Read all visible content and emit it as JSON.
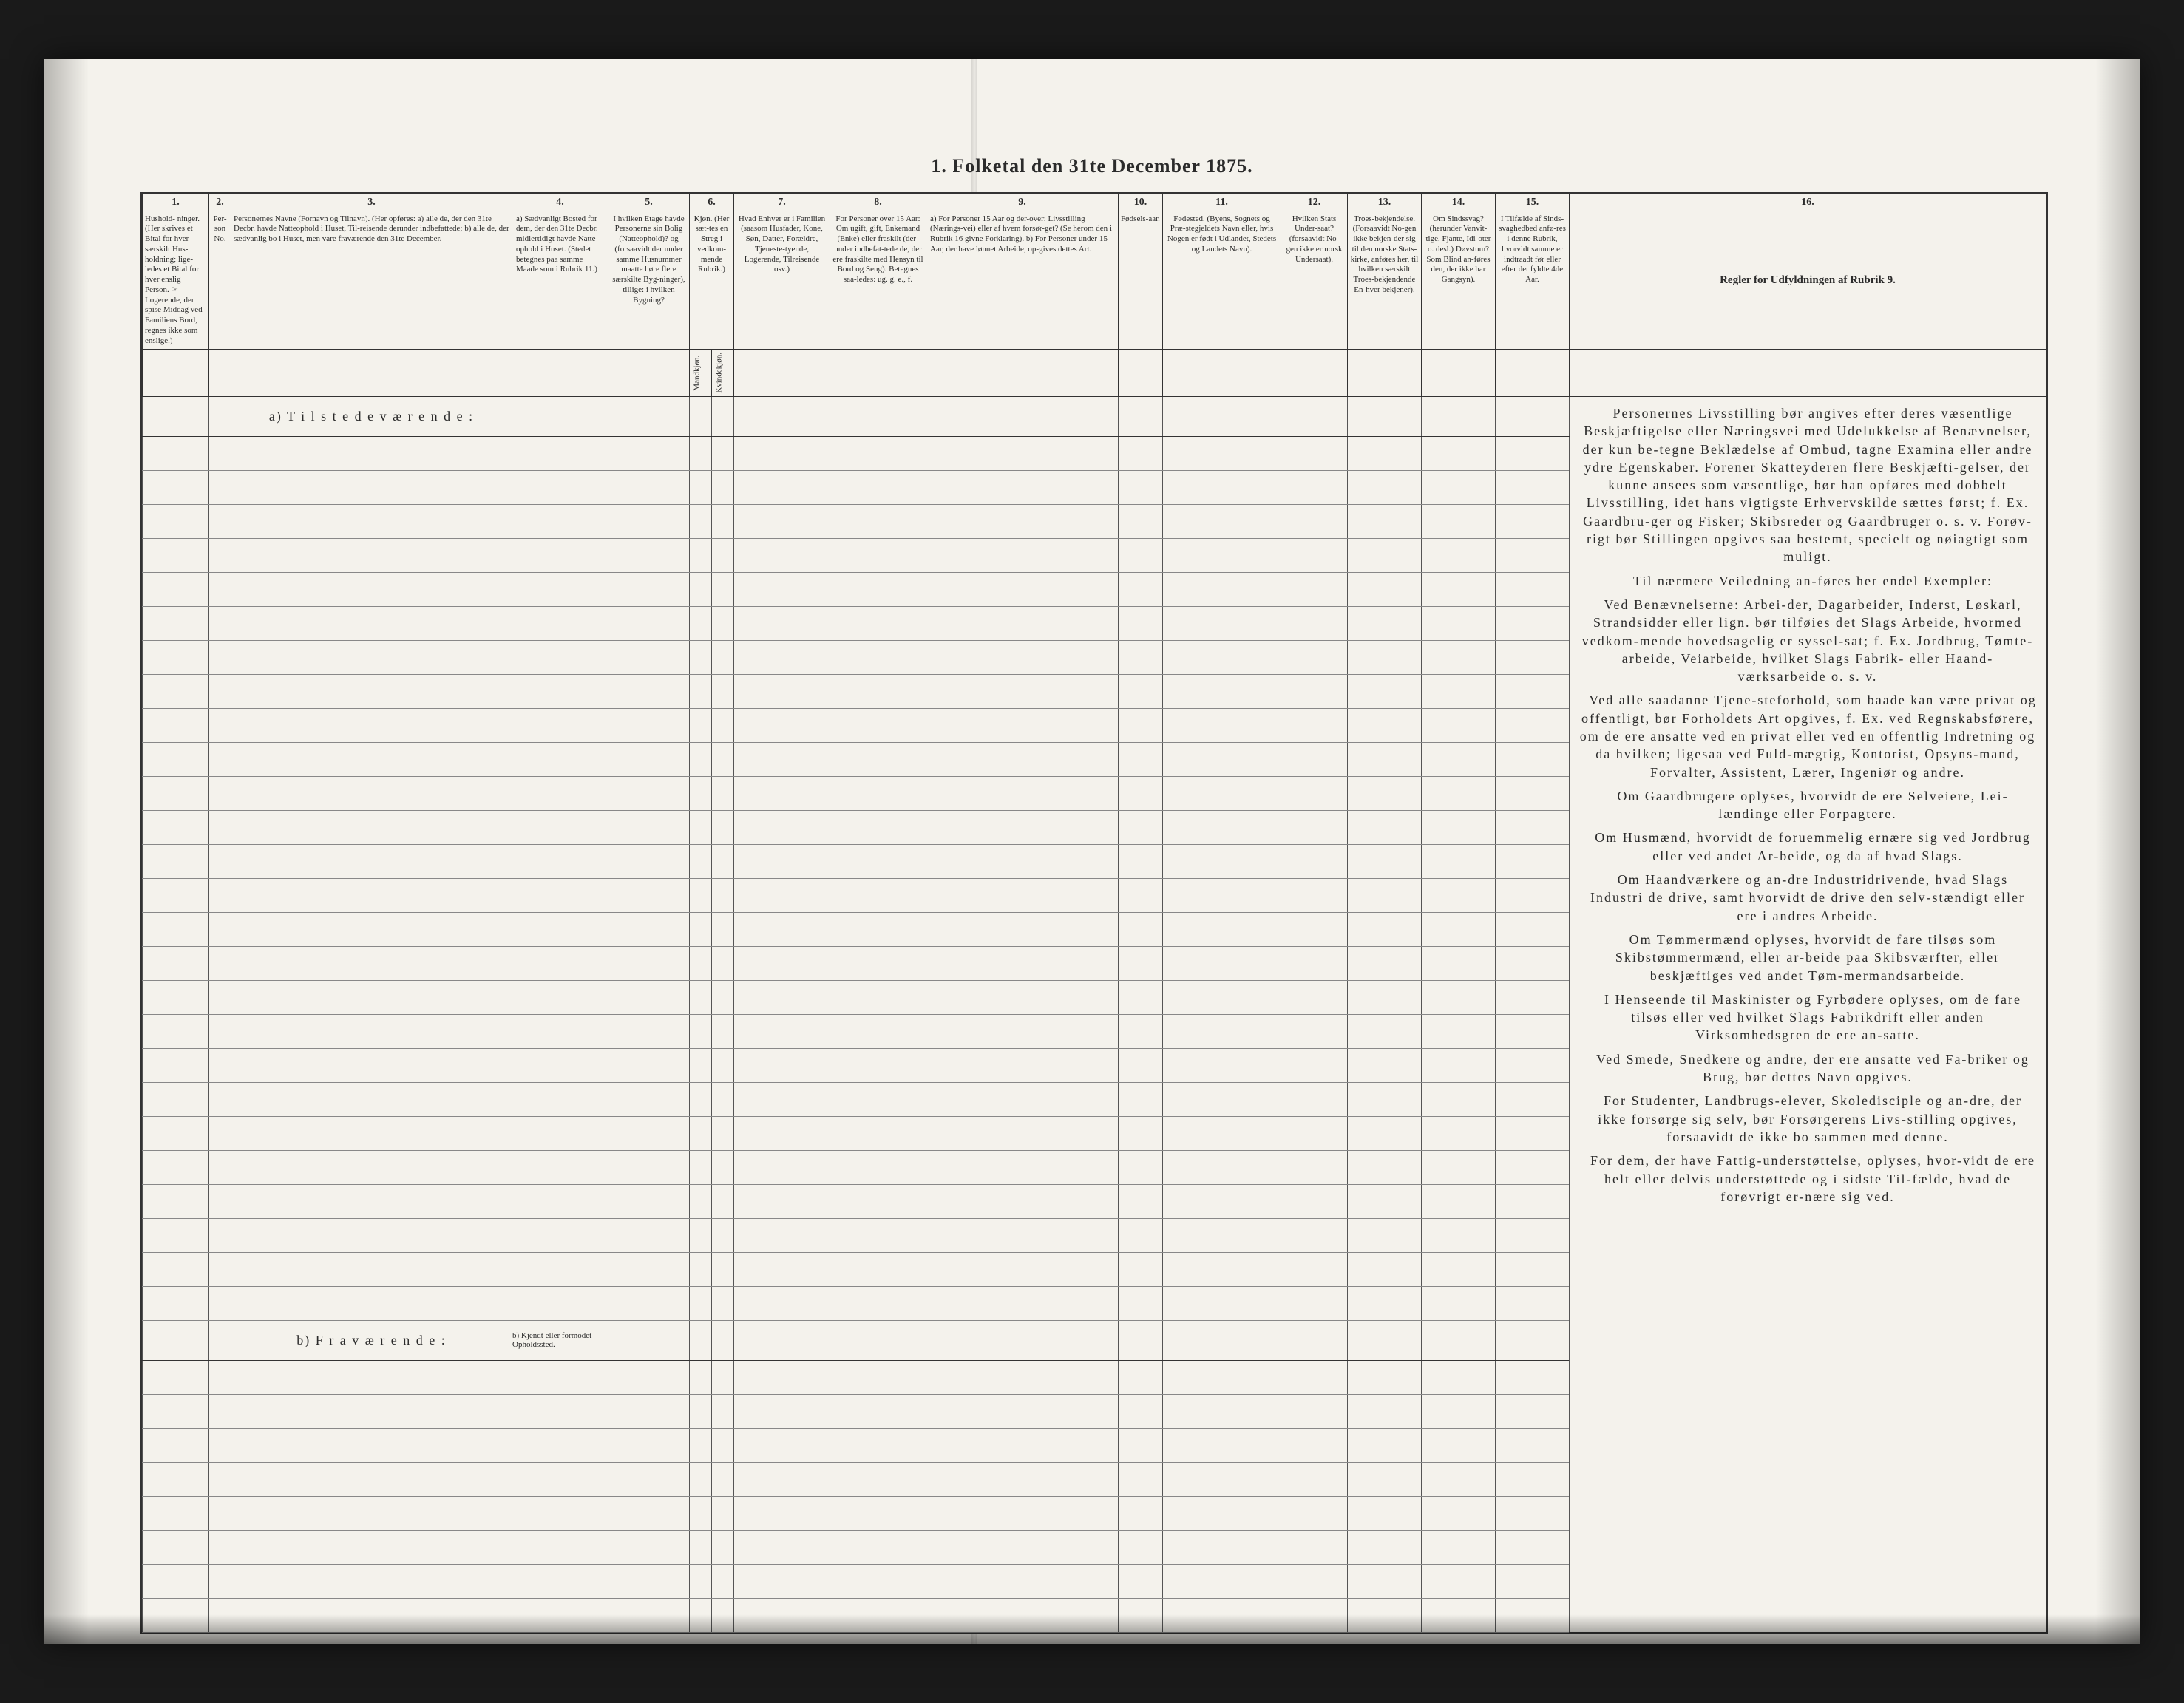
{
  "title": "1.  Folketal  den 31te December 1875.",
  "section_a": "a)  T i l s t e d e v æ r e n d e :",
  "section_b": "b)  F r a v æ r e n d e :",
  "rows_a": 26,
  "rows_b": 8,
  "cols": {
    "n1": "1.",
    "n2": "2.",
    "n3": "3.",
    "n4": "4.",
    "n5": "5.",
    "n6": "6.",
    "n7": "7.",
    "n8": "8.",
    "n9": "9.",
    "n10": "10.",
    "n11": "11.",
    "n12": "12.",
    "n13": "13.",
    "n14": "14.",
    "n15": "15.",
    "n16": "16."
  },
  "h": {
    "c1": "Hushold-\nninger.\n(Her skrives et Bital for hver særskilt Hus-holdning; lige-ledes et Bital for hver enslig Person.\n☞ Logerende, der spise Middag ved Familiens Bord, regnes ikke som enslige.)",
    "c2": "Per-son No.",
    "c3": "Personernes Navne (Fornavn og Tilnavn).\n(Her opføres:\na) alle de, der den 31te Decbr. havde Natteophold i Huset, Til-reisende derunder indbefattede;\nb) alle de, der sædvanlig bo i Huset, men vare fraværende den 31te December.",
    "c4": "a) Sædvanligt Bosted for dem, der den 31te Decbr. midlertidigt havde Natte-ophold i Huset. (Stedet betegnes paa samme Maade som i Rubrik 11.)\n\nb) Kjendt eller formodet Opholdssted.",
    "c5": "I hvilken Etage havde Personerne sin Bolig (Natteophold)? og (forsaavidt der under samme Husnummer maatte høre flere særskilte Byg-ninger), tillige: i hvilken Bygning?",
    "c6": "Kjøn.\n(Her sæt-tes en Streg i vedkom-mende Rubrik.)",
    "c6a": "Mandkjøn.",
    "c6b": "Kvindekjøn.",
    "c7": "Hvad Enhver er i Familien (saasom Husfader, Kone, Søn, Datter, Forældre, Tjeneste-tyende, Logerende, Tilreisende osv.)",
    "c8": "For Personer over 15 Aar: Om ugift, gift, Enkemand (Enke) eller fraskilt (der-under indbefat-tede de, der ere fraskilte med Hensyn til Bord og Seng). Betegnes saa-ledes: ug. g. e., f.",
    "c9": "a) For Personer 15 Aar og der-over: Livsstilling (Nærings-vei) eller af hvem forsør-get? (Se herom den i Rubrik 16 givne Forklaring).\nb) For Personer under 15 Aar, der have lønnet Arbeide, op-gives dettes Art.",
    "c10": "Fødsels-aar.",
    "c11": "Fødested.\n(Byens, Sognets og Præ-stegjeldets Navn eller, hvis Nogen er født i Udlandet, Stedets og Landets Navn).",
    "c12": "Hvilken Stats Under-saat? (forsaavidt No-gen ikke er norsk Undersaat).",
    "c13": "Troes-bekjendelse. (Forsaavidt No-gen ikke bekjen-der sig til den norske Stats-kirke, anføres her, til hvilken særskilt Troes-bekjendende En-hver bekjener).",
    "c14": "Om Sindssvag? (herunder Vanvit-tige, Fjante, Idi-oter o. desl.) Døvstum? Som Blind an-føres den, der ikke har Gangsyn).",
    "c15": "I Tilfælde af Sinds-svaghedbed anfø-res i denne Rubrik, hvorvidt samme er indtraadt før eller efter det fyldte 4de Aar.",
    "c16": "Regler for Udfyldningen\naf\nRubrik 9."
  },
  "r16": {
    "p1": "Personernes Livsstilling bør angives efter deres væsentlige Beskjæftigelse eller Næringsvei med Udelukkelse af Benævnelser, der kun be-tegne Beklædelse af Ombud, tagne Examina eller andre ydre Egenskaber. Forener Skatteyderen flere Beskjæfti-gelser, der kunne ansees som væsentlige, bør han opføres med dobbelt Livsstilling, idet hans vigtigste Erhvervskilde sættes først; f. Ex. Gaardbru-ger og Fisker; Skibsreder og Gaardbruger o. s. v. Forøv-rigt bør Stillingen opgives saa bestemt, specielt og nøiagtigt som muligt.",
    "p2": "Til nærmere Veiledning an-føres her endel Exempler:",
    "p3": "Ved Benævnelserne: Arbei-der, Dagarbeider, Inderst, Løskarl, Strandsidder eller lign. bør tilføies det Slags Arbeide, hvormed vedkom-mende hovedsagelig er syssel-sat; f. Ex. Jordbrug, Tømte-arbeide, Veiarbeide, hvilket Slags Fabrik- eller Haand-værksarbeide o. s. v.",
    "p4": "Ved alle saadanne Tjene-steforhold, som baade kan være privat og offentligt, bør Forholdets Art opgives, f. Ex. ved Regnskabsførere, om de ere ansatte ved en privat eller ved en offentlig Indretning og da hvilken; ligesaa ved Fuld-mægtig, Kontorist, Opsyns-mand, Forvalter, Assistent, Lærer, Ingeniør og andre.",
    "p5": "Om Gaardbrugere oplyses, hvorvidt de ere Selveiere, Lei-lændinge eller Forpagtere.",
    "p6": "Om Husmænd, hvorvidt de foruemmelig ernære sig ved Jordbrug eller ved andet Ar-beide, og da af hvad Slags.",
    "p7": "Om Haandværkere og an-dre Industridrivende, hvad Slags Industri de drive, samt hvorvidt de drive den selv-stændigt eller ere i andres Arbeide.",
    "p8": "Om Tømmermænd oplyses, hvorvidt de fare tilsøs som Skibstømmermænd, eller ar-beide paa Skibsværfter, eller beskjæftiges ved andet Tøm-mermandsarbeide.",
    "p9": "I Henseende til Maskinister og Fyrbødere oplyses, om de fare tilsøs eller ved hvilket Slags Fabrikdrift eller anden Virksomhedsgren de ere an-satte.",
    "p10": "Ved Smede, Snedkere og andre, der ere ansatte ved Fa-briker og Brug, bør dettes Navn opgives.",
    "p11": "For Studenter, Landbrugs-elever, Skoledisciple og an-dre, der ikke forsørge sig selv, bør Forsørgerens Livs-stilling opgives, forsaavidt de ikke bo sammen med denne.",
    "p12": "For dem, der have Fattig-understøttelse, oplyses, hvor-vidt de ere helt eller delvis understøttede og i sidste Til-fælde, hvad de forøvrigt er-nære sig ved."
  }
}
